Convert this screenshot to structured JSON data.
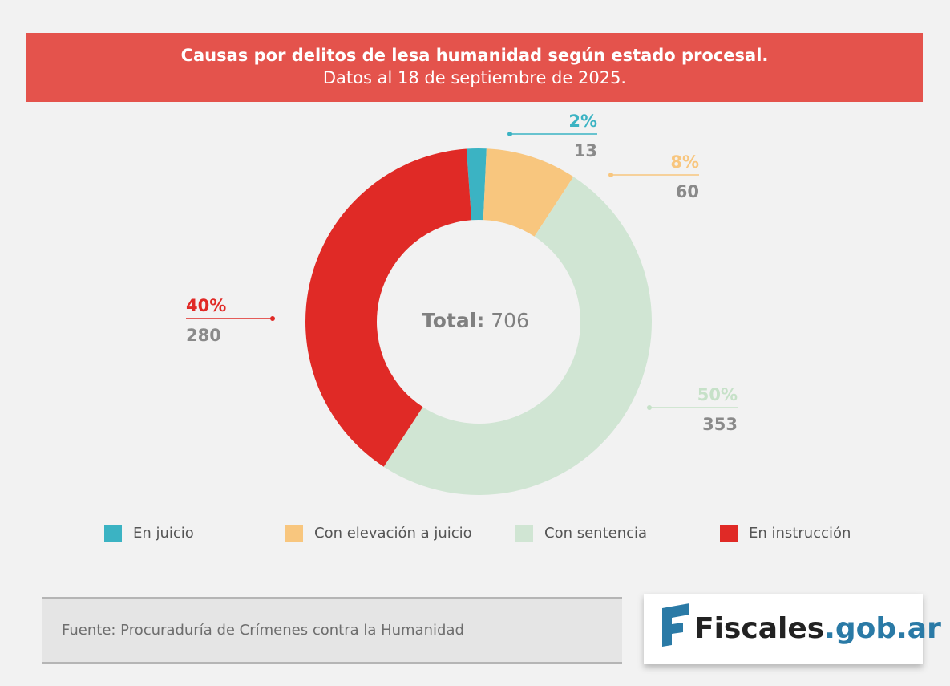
{
  "chart_data": {
    "type": "donut",
    "title": "Causas por delitos de lesa humanidad según estado procesal.",
    "subtitle": "Datos al 18 de septiembre de 2025.",
    "categories": [
      "En juicio",
      "Con elevación a juicio",
      "Con sentencia",
      "En instrucción"
    ],
    "values": [
      13,
      60,
      353,
      280
    ],
    "colors": [
      "#3bb3c3",
      "#f8c67e",
      "#d0e5d3",
      "#e02a26"
    ],
    "label_colors": [
      "#3bb3c3",
      "#f8c67e",
      "#c6e1c8",
      "#e02a26"
    ],
    "shares": {
      "values": [
        2,
        8,
        50,
        40
      ],
      "value_labels": [
        "2%",
        "8%",
        "50%",
        "40%"
      ]
    },
    "total_label": "Total:",
    "total": 706
  },
  "footer": {
    "source": "Fuente: Procuraduría de Crímenes contra la Humanidad"
  },
  "logo": {
    "name": "Fiscales",
    "domain": ".gob.ar"
  }
}
